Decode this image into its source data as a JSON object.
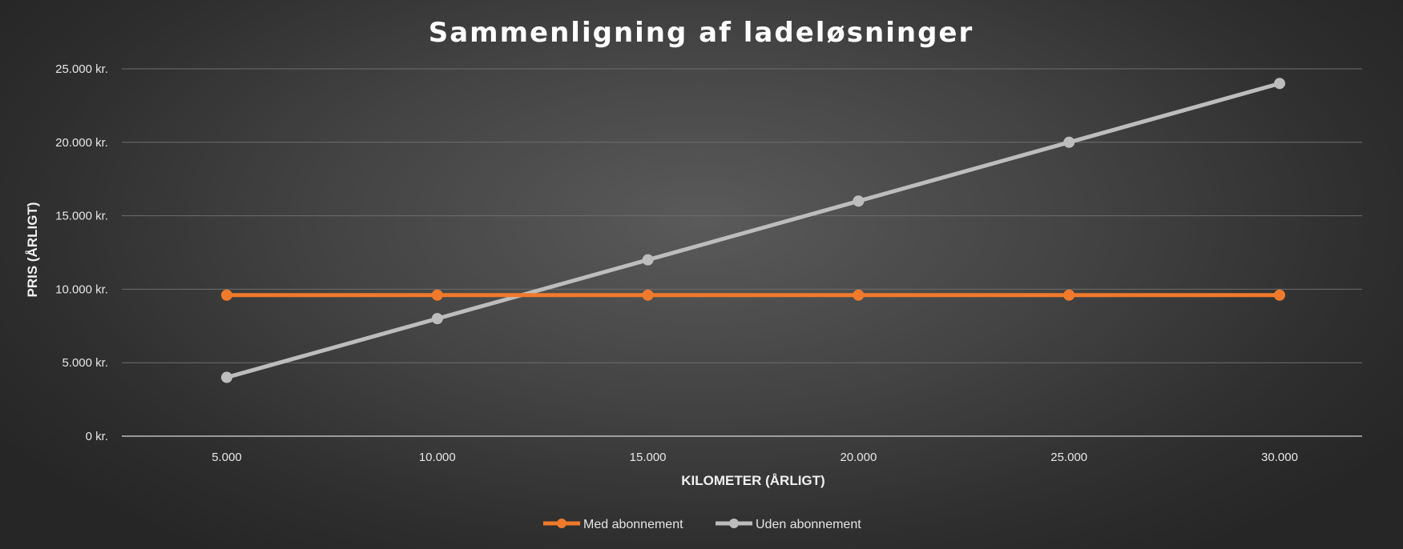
{
  "chart_data": {
    "type": "line",
    "title": "Sammenligning af ladeløsninger",
    "xlabel": "KILOMETER (ÅRLIGT)",
    "ylabel": "PRIS (ÅRLIGT)",
    "categories": [
      "5.000",
      "10.000",
      "15.000",
      "20.000",
      "25.000",
      "30.000"
    ],
    "x": [
      5000,
      10000,
      15000,
      20000,
      25000,
      30000
    ],
    "ylim": [
      0,
      25000
    ],
    "yticks": [
      0,
      5000,
      10000,
      15000,
      20000,
      25000
    ],
    "ytick_labels": [
      "0 kr.",
      "5.000 kr.",
      "10.000 kr.",
      "15.000 kr.",
      "20.000 kr.",
      "25.000 kr."
    ],
    "grid": true,
    "legend_position": "bottom",
    "series": [
      {
        "name": "Med abonnement",
        "color": "#f07a2b",
        "values": [
          9600,
          9600,
          9600,
          9600,
          9600,
          9600
        ]
      },
      {
        "name": "Uden abonnement",
        "color": "#bdbdbd",
        "values": [
          4000,
          8000,
          12000,
          16000,
          20000,
          24000
        ]
      }
    ]
  }
}
